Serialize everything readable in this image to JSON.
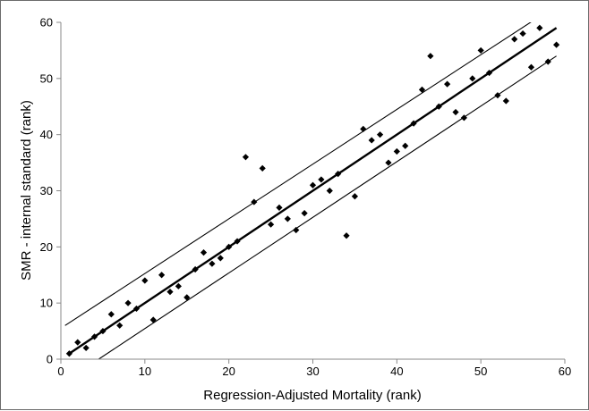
{
  "chart_data": {
    "type": "scatter",
    "title": "",
    "xlabel": "Regression-Adjusted Mortality (rank)",
    "ylabel": "SMR - internal standard (rank)",
    "xlim": [
      0,
      60
    ],
    "ylim": [
      0,
      60
    ],
    "xticks": [
      0,
      10,
      20,
      30,
      40,
      50,
      60
    ],
    "yticks": [
      0,
      10,
      20,
      30,
      40,
      50,
      60
    ],
    "grid": false,
    "legend": "none",
    "marker": "diamond",
    "colors": {
      "points": "#000000",
      "lines": "#000000",
      "axes": "#888888"
    },
    "points": [
      [
        1,
        1
      ],
      [
        2,
        3
      ],
      [
        3,
        2
      ],
      [
        4,
        4
      ],
      [
        5,
        5
      ],
      [
        6,
        8
      ],
      [
        7,
        6
      ],
      [
        8,
        10
      ],
      [
        9,
        9
      ],
      [
        10,
        14
      ],
      [
        11,
        7
      ],
      [
        12,
        15
      ],
      [
        13,
        12
      ],
      [
        14,
        13
      ],
      [
        15,
        11
      ],
      [
        16,
        16
      ],
      [
        17,
        19
      ],
      [
        18,
        17
      ],
      [
        19,
        18
      ],
      [
        20,
        20
      ],
      [
        21,
        21
      ],
      [
        22,
        36
      ],
      [
        23,
        28
      ],
      [
        24,
        34
      ],
      [
        25,
        24
      ],
      [
        26,
        27
      ],
      [
        27,
        25
      ],
      [
        28,
        23
      ],
      [
        29,
        26
      ],
      [
        30,
        31
      ],
      [
        31,
        32
      ],
      [
        32,
        30
      ],
      [
        33,
        33
      ],
      [
        34,
        22
      ],
      [
        35,
        29
      ],
      [
        36,
        41
      ],
      [
        37,
        39
      ],
      [
        38,
        40
      ],
      [
        39,
        35
      ],
      [
        40,
        37
      ],
      [
        41,
        38
      ],
      [
        42,
        42
      ],
      [
        43,
        48
      ],
      [
        44,
        54
      ],
      [
        45,
        45
      ],
      [
        46,
        49
      ],
      [
        47,
        44
      ],
      [
        48,
        43
      ],
      [
        49,
        50
      ],
      [
        50,
        55
      ],
      [
        51,
        51
      ],
      [
        52,
        47
      ],
      [
        53,
        46
      ],
      [
        54,
        57
      ],
      [
        55,
        58
      ],
      [
        56,
        52
      ],
      [
        57,
        59
      ],
      [
        58,
        53
      ],
      [
        59,
        56
      ]
    ],
    "lines": [
      {
        "role": "fit",
        "x": [
          1,
          59
        ],
        "y": [
          1,
          59
        ]
      },
      {
        "role": "upper-bound",
        "x": [
          0.5,
          59
        ],
        "y": [
          6,
          63
        ]
      },
      {
        "role": "lower-bound",
        "x": [
          4.5,
          59
        ],
        "y": [
          0,
          54
        ]
      }
    ]
  }
}
